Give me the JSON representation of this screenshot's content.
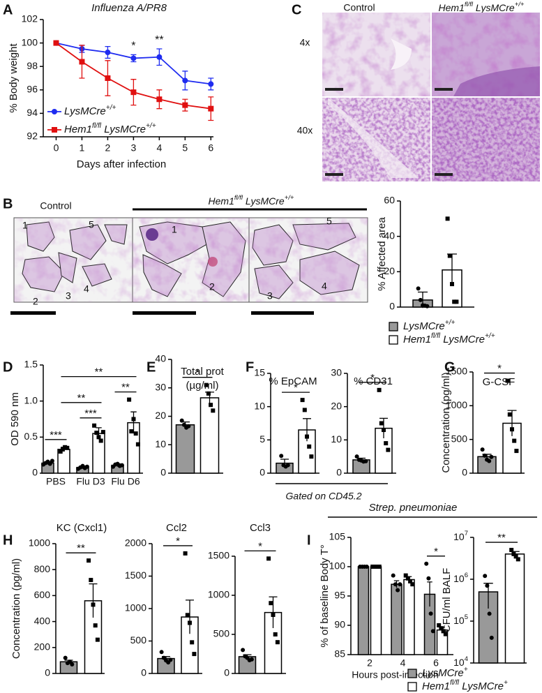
{
  "panel_labels": [
    "A",
    "B",
    "C",
    "D",
    "E",
    "F",
    "G",
    "H",
    "I"
  ],
  "figure_text": {
    "f_note": "Gated on CD45.2",
    "i_title": "Strep. pneumoniae"
  },
  "histology": {
    "b_groups": [
      "Control",
      [
        "Hem1",
        "fl/fl",
        " LysMCre",
        "+/+"
      ]
    ],
    "b_lobes": [
      "1",
      "5",
      "2",
      "3",
      "4",
      "1",
      "2",
      "5",
      "3",
      "4"
    ],
    "c_columns": [
      "Control",
      [
        "Hem1",
        "fl/fl",
        " LysMCre",
        "+/+"
      ]
    ],
    "c_rows": [
      "4x",
      "40x"
    ]
  },
  "chart_data": [
    {
      "type": "line",
      "title": "Influenza A/PR8",
      "xlabel": "Days after infection",
      "ylabel": "% Body weight",
      "x": [
        0,
        1,
        2,
        3,
        4,
        5,
        6
      ],
      "xlim": [
        -0.5,
        6.1
      ],
      "xticks": [
        0,
        1,
        2,
        3,
        4,
        5,
        6
      ],
      "ylim": [
        92,
        102
      ],
      "yticks": [
        92,
        94,
        96,
        98,
        100,
        102
      ],
      "legend": "lower left",
      "series": [
        {
          "name": [
            "LysMCre",
            "+/+"
          ],
          "color": "#1f2cf0",
          "marker": "circle",
          "values": [
            100,
            99.5,
            99.2,
            98.7,
            98.8,
            96.8,
            96.5
          ],
          "errors": [
            0,
            0.3,
            0.5,
            0.3,
            0.7,
            0.8,
            0.5
          ]
        },
        {
          "name": [
            "Hem1",
            "fl/fl",
            " LysMCre",
            "+/+"
          ],
          "color": "#e01010",
          "marker": "square",
          "values": [
            100,
            98.4,
            97.0,
            95.8,
            95.2,
            94.7,
            94.4
          ],
          "errors": [
            0,
            1.4,
            1.5,
            1.1,
            0.8,
            0.5,
            1.0
          ]
        }
      ],
      "annotations": [
        {
          "x": 3,
          "text": "*"
        },
        {
          "x": 4,
          "text": "**"
        }
      ]
    },
    {
      "type": "bar",
      "ylabel": "% Affected area",
      "categories": [
        null
      ],
      "ylim": [
        0,
        60
      ],
      "yticks": [
        0,
        20,
        40,
        60
      ],
      "series": [
        {
          "name": [
            "LysMCre",
            "+/+"
          ],
          "color": "#999999",
          "marker": "circle",
          "values": [
            4
          ],
          "errors": [
            4.5
          ],
          "points": [
            [
              10.5,
              4,
              1,
              0.8,
              0.5
            ]
          ]
        },
        {
          "name": [
            "Hem1",
            "fl/fl",
            " LysMCre",
            "+/+"
          ],
          "color": "#ffffff",
          "marker": "square",
          "values": [
            21
          ],
          "errors": [
            9
          ],
          "points": [
            [
              50,
              29,
              13,
              3,
              3
            ]
          ]
        }
      ],
      "significance": []
    },
    {
      "type": "bar",
      "ylabel": "OD 590 nm",
      "categories": [
        "PBS",
        "Flu D3",
        "Flu D6"
      ],
      "ylim": [
        0,
        1.5
      ],
      "yticks": [
        0,
        0.5,
        {
          "value": 1,
          "label": "1.0"
        },
        1.5
      ],
      "series": [
        {
          "color": "#999999",
          "marker": "circle",
          "values": [
            0.14,
            0.08,
            0.11
          ],
          "errors": [
            0.02,
            0.02,
            0.02
          ],
          "points": [
            [
              0.12,
              0.14,
              0.16,
              0.13,
              0.17
            ],
            [
              0.06,
              0.08,
              0.1,
              0.07,
              0.09
            ],
            [
              0.09,
              0.12,
              0.13,
              0.1,
              0.11
            ]
          ]
        },
        {
          "color": "#ffffff",
          "marker": "square",
          "values": [
            0.33,
            0.55,
            0.7
          ],
          "errors": [
            0.03,
            0.08,
            0.15
          ],
          "points": [
            [
              0.3,
              0.33,
              0.36,
              0.35
            ],
            [
              0.66,
              0.56,
              0.5,
              0.45,
              0.57
            ],
            [
              1.02,
              0.58,
              0.75,
              0.55,
              0.4
            ]
          ]
        }
      ],
      "significance": [
        {
          "text": "***",
          "between": [
            [
              0,
              0
            ],
            [
              1,
              0
            ]
          ]
        },
        {
          "text": "***",
          "between": [
            [
              0,
              1
            ],
            [
              1,
              1
            ]
          ]
        },
        {
          "text": "**",
          "between": [
            [
              0,
              2
            ],
            [
              1,
              2
            ]
          ]
        },
        {
          "text": "**",
          "between": [
            [
              1,
              0
            ],
            [
              1,
              1
            ]
          ]
        },
        {
          "text": "**",
          "between": [
            [
              1,
              0
            ],
            [
              1,
              2
            ]
          ]
        }
      ]
    },
    {
      "type": "bar",
      "title": [
        "Total prot",
        "(µg/ml)"
      ],
      "categories": [
        null
      ],
      "ylim": [
        0,
        40
      ],
      "yticks": [
        0,
        10,
        20,
        30,
        40
      ],
      "series": [
        {
          "color": "#999999",
          "marker": "circle",
          "values": [
            17
          ],
          "errors": [
            1
          ],
          "points": [
            [
              18.5,
              17,
              16,
              16.5
            ]
          ]
        },
        {
          "color": "#ffffff",
          "marker": "square",
          "values": [
            26.5
          ],
          "errors": [
            2
          ],
          "points": [
            [
              31,
              28,
              24,
              22
            ]
          ]
        }
      ],
      "significance": [
        {
          "text": "*",
          "between": [
            [
              0,
              0
            ],
            [
              1,
              0
            ]
          ]
        }
      ]
    },
    {
      "type": "bar",
      "title": "% EpCAM",
      "categories": [
        null
      ],
      "ylim": [
        0,
        15
      ],
      "yticks": [
        0,
        5,
        10,
        15
      ],
      "series": [
        {
          "color": "#999999",
          "marker": "circle",
          "values": [
            1.5
          ],
          "errors": [
            0.6
          ],
          "points": [
            [
              2.6,
              1.2,
              1,
              1.2
            ]
          ]
        },
        {
          "color": "#ffffff",
          "marker": "square",
          "values": [
            6.5
          ],
          "errors": [
            1.7
          ],
          "points": [
            [
              11,
              9.5,
              5.5,
              4,
              2.5
            ]
          ]
        }
      ],
      "significance": [
        {
          "text": "*",
          "between": [
            [
              0,
              0
            ],
            [
              1,
              0
            ]
          ]
        }
      ]
    },
    {
      "type": "bar",
      "title": "% CD31",
      "categories": [
        null
      ],
      "ylim": [
        0,
        30
      ],
      "yticks": [
        0,
        10,
        20,
        30
      ],
      "series": [
        {
          "color": "#999999",
          "marker": "circle",
          "values": [
            4
          ],
          "errors": [
            0.5
          ],
          "points": [
            [
              5,
              4,
              3.8,
              3.5,
              3.6
            ]
          ]
        },
        {
          "color": "#ffffff",
          "marker": "square",
          "values": [
            13.5
          ],
          "errors": [
            3
          ],
          "points": [
            [
              25,
              15,
              13,
              9,
              7
            ]
          ]
        }
      ],
      "significance": [
        {
          "text": "*",
          "between": [
            [
              0,
              0
            ],
            [
              1,
              0
            ]
          ]
        }
      ]
    },
    {
      "type": "bar",
      "title": "G-CSF",
      "ylabel": "Concentration (pg/ml)",
      "categories": [
        null
      ],
      "ylim": [
        0,
        1500
      ],
      "yticks": [
        0,
        500,
        1000,
        1500
      ],
      "series": [
        {
          "color": "#999999",
          "marker": "circle",
          "values": [
            245
          ],
          "errors": [
            35
          ],
          "points": [
            [
              350,
              260,
              200,
              180,
              240
            ]
          ]
        },
        {
          "color": "#ffffff",
          "marker": "square",
          "values": [
            740
          ],
          "errors": [
            190
          ],
          "points": [
            [
              1370,
              870,
              650,
              480,
              330
            ]
          ]
        }
      ],
      "significance": [
        {
          "text": "*",
          "between": [
            [
              0,
              0
            ],
            [
              1,
              0
            ]
          ]
        }
      ]
    },
    {
      "type": "bar",
      "title": "KC (Cxcl1)",
      "ylabel": "Concentration (pg/ml)",
      "categories": [
        null
      ],
      "ylim": [
        0,
        1000
      ],
      "yticks": [
        0,
        200,
        400,
        600,
        800,
        1000
      ],
      "series": [
        {
          "color": "#999999",
          "marker": "circle",
          "values": [
            90
          ],
          "errors": [
            12
          ],
          "points": [
            [
              120,
              80,
              90,
              70
            ]
          ]
        },
        {
          "color": "#ffffff",
          "marker": "square",
          "values": [
            560
          ],
          "errors": [
            130
          ],
          "points": [
            [
              870,
              720,
              530,
              370,
              260
            ]
          ]
        }
      ],
      "significance": [
        {
          "text": "**",
          "between": [
            [
              0,
              0
            ],
            [
              1,
              0
            ]
          ]
        }
      ]
    },
    {
      "type": "bar",
      "title": "Ccl2",
      "categories": [
        null
      ],
      "ylim": [
        0,
        2000
      ],
      "yticks": [
        0,
        500,
        1000,
        1500,
        2000
      ],
      "series": [
        {
          "color": "#999999",
          "marker": "circle",
          "values": [
            230
          ],
          "errors": [
            30
          ],
          "points": [
            [
              330,
              240,
              200,
              170,
              210
            ]
          ]
        },
        {
          "color": "#ffffff",
          "marker": "square",
          "values": [
            870
          ],
          "errors": [
            260
          ],
          "points": [
            [
              1850,
              900,
              780,
              480,
              300
            ]
          ]
        }
      ],
      "significance": [
        {
          "text": "*",
          "between": [
            [
              0,
              0
            ],
            [
              1,
              0
            ]
          ]
        }
      ]
    },
    {
      "type": "bar",
      "title": "Ccl3",
      "categories": [
        null
      ],
      "ylim": [
        0,
        1500
      ],
      "yticks": [
        0,
        500,
        1000,
        1500
      ],
      "series": [
        {
          "color": "#999999",
          "marker": "circle",
          "values": [
            215
          ],
          "errors": [
            25
          ],
          "points": [
            [
              300,
              220,
              200,
              170,
              180
            ]
          ]
        },
        {
          "color": "#ffffff",
          "marker": "square",
          "values": [
            780
          ],
          "errors": [
            200
          ],
          "points": [
            [
              1470,
              900,
              750,
              500,
              400
            ]
          ]
        }
      ],
      "significance": [
        {
          "text": "*",
          "between": [
            [
              0,
              0
            ],
            [
              1,
              0
            ]
          ]
        }
      ]
    },
    {
      "type": "bar",
      "ylabel": "% of baseline Body T°",
      "xlabel": "Hours post-infection",
      "categories": [
        "2",
        "4",
        "6"
      ],
      "ylim": [
        85,
        105
      ],
      "yticks": [
        85,
        90,
        95,
        100,
        105
      ],
      "series": [
        {
          "color": "#999999",
          "marker": "circle",
          "values": [
            100,
            97,
            95.3
          ],
          "errors": [
            0,
            0.6,
            2.1
          ],
          "points": [
            [
              100,
              100,
              100,
              100
            ],
            [
              98.5,
              97,
              96,
              97
            ],
            [
              100.5,
              98,
              92,
              89
            ]
          ]
        },
        {
          "color": "#ffffff",
          "marker": "square",
          "values": [
            100,
            97.8,
            89.2
          ],
          "errors": [
            0,
            0.5,
            0.4
          ],
          "points": [
            [
              100,
              100,
              100,
              100
            ],
            [
              98.5,
              98,
              97.5,
              97
            ],
            [
              90,
              89.5,
              89,
              88.5
            ]
          ]
        }
      ],
      "significance": [
        {
          "text": "*",
          "between": [
            [
              0,
              2
            ],
            [
              1,
              2
            ]
          ]
        }
      ]
    },
    {
      "type": "bar",
      "ylabel": "CFU/ml BALF",
      "yscale": "log",
      "categories": [
        null
      ],
      "ylim": [
        10000,
        10000000
      ],
      "yticks": [
        {
          "value": 10000,
          "label": [
            "10",
            "4"
          ]
        },
        {
          "value": 100000,
          "label": [
            "10",
            "5"
          ]
        },
        {
          "value": 1000000,
          "label": [
            "10",
            "6"
          ]
        },
        {
          "value": 10000000,
          "label": [
            "10",
            "7"
          ]
        }
      ],
      "series": [
        {
          "name": [
            "LysMCre",
            "+"
          ],
          "color": "#999999",
          "marker": "circle",
          "values": [
            500000
          ],
          "errors": [
            300000
          ],
          "points": [
            [
              1200000,
              700000,
              150000,
              40000
            ]
          ]
        },
        {
          "name": [
            "Hem1",
            "fl/fl",
            " LysMCre",
            "+"
          ],
          "color": "#ffffff",
          "marker": "square",
          "values": [
            4000000
          ],
          "errors": [
            600000
          ],
          "points": [
            [
              5000000,
              4000000,
              3500000,
              3000000
            ]
          ]
        }
      ],
      "significance": [
        {
          "text": "**",
          "between": [
            [
              0,
              0
            ],
            [
              1,
              0
            ]
          ]
        }
      ]
    }
  ]
}
